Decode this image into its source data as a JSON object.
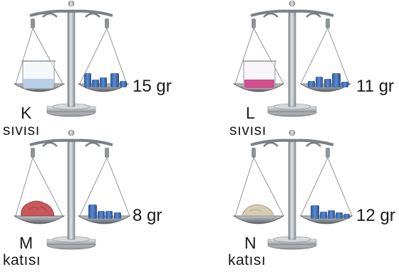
{
  "scales": [
    {
      "id": "K",
      "weight": "15 gr",
      "letter": "K",
      "word": "sıvısı",
      "pan_item": "liquid",
      "item_color": "#b9cfe9",
      "weights_count": 4
    },
    {
      "id": "L",
      "weight": "11 gr",
      "letter": "L",
      "word": "sıvısı",
      "pan_item": "liquid",
      "item_color": "#d24c8e",
      "weights_count": 3
    },
    {
      "id": "M",
      "weight": "8 gr",
      "letter": "M",
      "word": "katısı",
      "pan_item": "solid",
      "item_color": "#c9585a",
      "weights_count": 3
    },
    {
      "id": "N",
      "weight": "12 gr",
      "letter": "N",
      "word": "katısı",
      "pan_item": "solid",
      "item_color": "#d4ccb3",
      "weights_count": 4
    }
  ],
  "colors": {
    "metal": "#9a9fa5",
    "metal_dark": "#6f7479",
    "metal_light": "#d9dcdf",
    "weight_blue": "#3d6fb8",
    "weight_blue_dark": "#2a4f8a"
  }
}
